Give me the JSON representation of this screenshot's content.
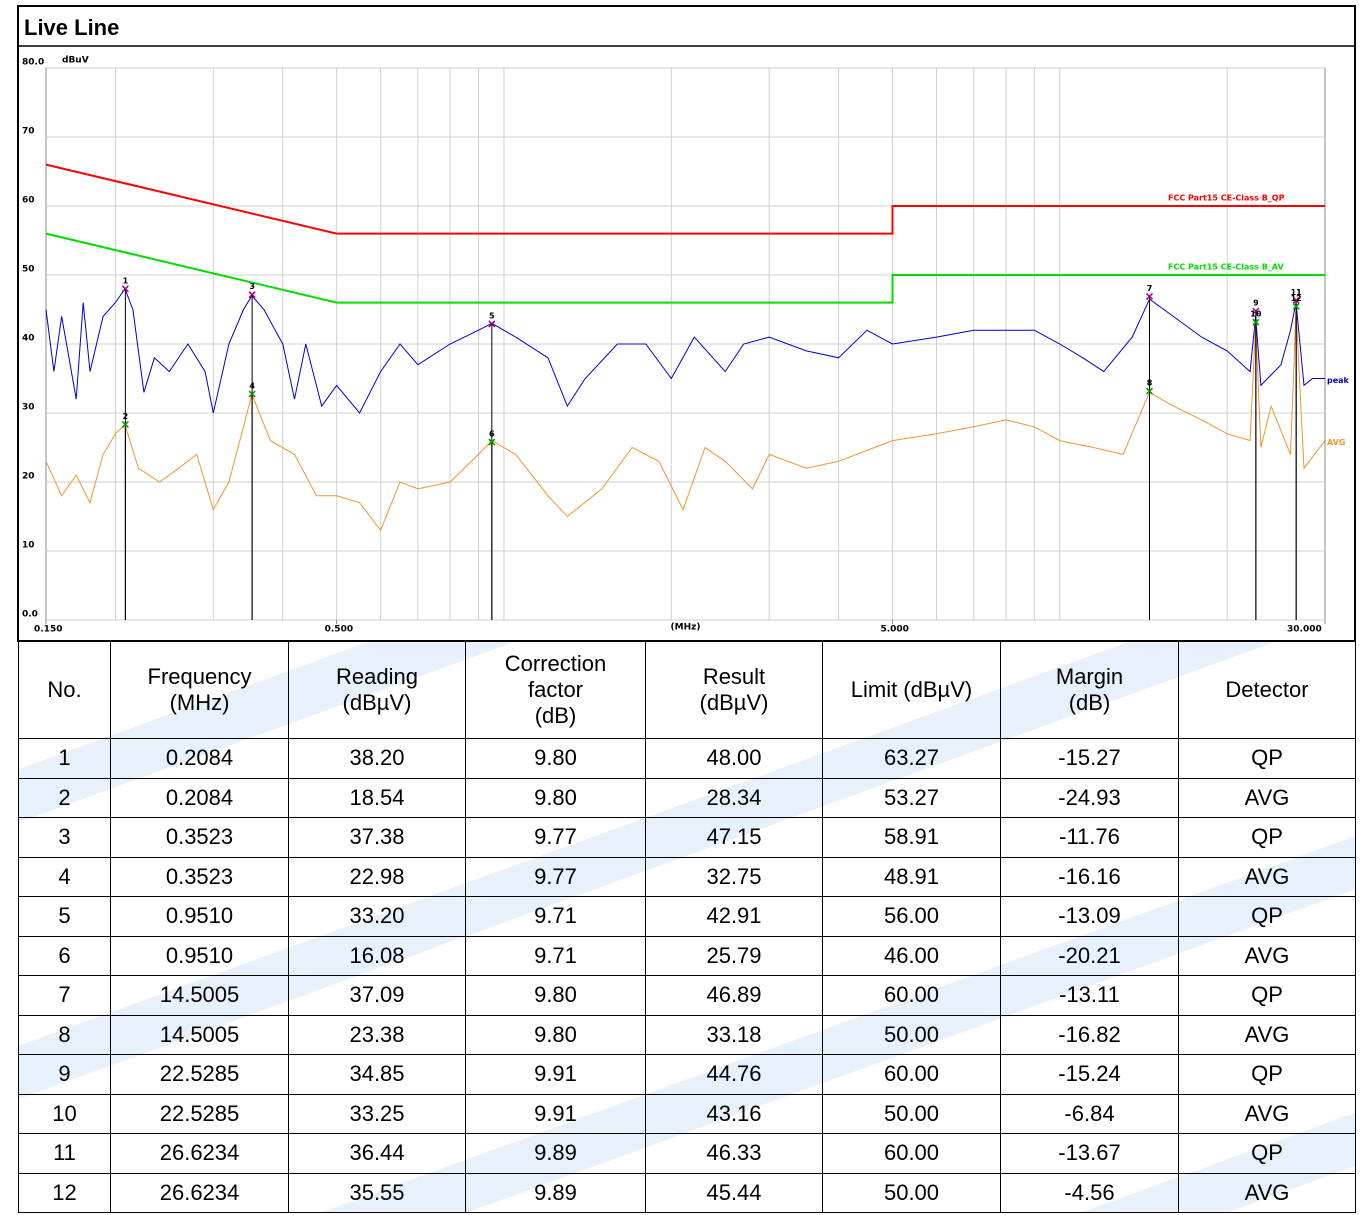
{
  "header": {
    "title": "Live Line"
  },
  "chart_data": {
    "type": "line",
    "y_unit": "dBuV",
    "x_unit": "(MHz)",
    "log_x": true,
    "log_minor_grid": true,
    "grid": true,
    "xlim": [
      0.15,
      30
    ],
    "ylim": [
      0,
      80
    ],
    "xticks": [
      {
        "value": 0.15,
        "label": "0.150"
      },
      {
        "value": 0.5,
        "label": "0.500"
      },
      {
        "value": 5,
        "label": "5.000"
      },
      {
        "value": 30,
        "label": "30.000"
      }
    ],
    "yticks": [
      {
        "value": 80,
        "label": "80.0"
      },
      70,
      60,
      50,
      40,
      30,
      20,
      10,
      {
        "value": 0,
        "label": "0.0"
      }
    ],
    "limits": [
      {
        "name": "FCC Part15 CE-Class B_QP",
        "color": "#ff0000",
        "x": [
          0.15,
          0.5,
          5,
          5,
          30
        ],
        "values": [
          66,
          56,
          56,
          60,
          60
        ]
      },
      {
        "name": "FCC Part15 CE-Class B_AV",
        "color": "#00dd00",
        "x": [
          0.15,
          0.5,
          5,
          5,
          30
        ],
        "values": [
          56,
          46,
          46,
          50,
          50
        ]
      }
    ],
    "series": [
      {
        "name": "peak",
        "color": "#0000cc",
        "x": [
          0.15,
          0.155,
          0.16,
          0.165,
          0.17,
          0.175,
          0.18,
          0.19,
          0.2,
          0.208,
          0.215,
          0.225,
          0.235,
          0.25,
          0.27,
          0.29,
          0.3,
          0.32,
          0.34,
          0.352,
          0.37,
          0.4,
          0.42,
          0.44,
          0.47,
          0.5,
          0.55,
          0.6,
          0.65,
          0.7,
          0.8,
          0.9,
          0.951,
          1.05,
          1.2,
          1.3,
          1.4,
          1.6,
          1.8,
          2.0,
          2.2,
          2.5,
          2.7,
          3.0,
          3.5,
          4.0,
          4.5,
          5.0,
          6.0,
          7.0,
          8.0,
          9.0,
          10.0,
          11.0,
          12.0,
          13.5,
          14.5,
          16.0,
          18.0,
          20.0,
          22.0,
          22.5,
          23.0,
          25.0,
          26.0,
          26.6,
          27.5,
          28.5,
          30.0
        ],
        "values": [
          45,
          36,
          44,
          38,
          32,
          46,
          36,
          44,
          46,
          48,
          45,
          33,
          38,
          36,
          40,
          36,
          30,
          40,
          45,
          47,
          45,
          40,
          32,
          40,
          31,
          34,
          30,
          36,
          40,
          37,
          40,
          42,
          43,
          41,
          38,
          31,
          35,
          40,
          40,
          35,
          41,
          36,
          40,
          41,
          39,
          38,
          42,
          40,
          41,
          42,
          42,
          42,
          40,
          38,
          36,
          41,
          46.5,
          44,
          41,
          39,
          36,
          44,
          34,
          37,
          42,
          46,
          34,
          35,
          35
        ]
      },
      {
        "name": "AVG",
        "color": "#f39530",
        "x": [
          0.15,
          0.16,
          0.17,
          0.18,
          0.19,
          0.2,
          0.208,
          0.22,
          0.24,
          0.26,
          0.28,
          0.3,
          0.32,
          0.34,
          0.352,
          0.38,
          0.42,
          0.46,
          0.5,
          0.55,
          0.6,
          0.65,
          0.7,
          0.8,
          0.9,
          0.951,
          1.05,
          1.2,
          1.3,
          1.5,
          1.7,
          1.9,
          2.1,
          2.3,
          2.5,
          2.8,
          3.0,
          3.5,
          4.0,
          5.0,
          6.0,
          7.0,
          8.0,
          9.0,
          10.0,
          11.5,
          13.0,
          14.5,
          16.0,
          18.0,
          20.0,
          22.0,
          22.5,
          23.0,
          24.0,
          26.0,
          26.6,
          27.5,
          30.0
        ],
        "values": [
          23,
          18,
          21,
          17,
          24,
          27,
          28.3,
          22,
          20,
          22,
          24,
          16,
          20,
          28,
          32.7,
          26,
          24,
          18,
          18,
          17,
          13,
          20,
          19,
          20,
          24,
          26,
          24,
          18,
          15,
          19,
          25,
          23,
          16,
          25,
          23,
          19,
          24,
          22,
          23,
          26,
          27,
          28,
          29,
          28,
          26,
          25,
          24,
          33,
          31,
          29,
          27,
          26,
          43,
          25,
          31,
          24,
          45,
          22,
          26
        ]
      }
    ]
  },
  "table": {
    "header": [
      "No.",
      "Frequency\n(MHz)",
      "Reading\n(dBµV)",
      "Correction\nfactor\n(dB)",
      "Result\n(dBµV)",
      "Limit (dBµV)",
      "Margin\n(dB)",
      "Detector"
    ],
    "rows": [
      [
        "1",
        "0.2084",
        "38.20",
        "9.80",
        "48.00",
        "63.27",
        "-15.27",
        "QP"
      ],
      [
        "2",
        "0.2084",
        "18.54",
        "9.80",
        "28.34",
        "53.27",
        "-24.93",
        "AVG"
      ],
      [
        "3",
        "0.3523",
        "37.38",
        "9.77",
        "47.15",
        "58.91",
        "-11.76",
        "QP"
      ],
      [
        "4",
        "0.3523",
        "22.98",
        "9.77",
        "32.75",
        "48.91",
        "-16.16",
        "AVG"
      ],
      [
        "5",
        "0.9510",
        "33.20",
        "9.71",
        "42.91",
        "56.00",
        "-13.09",
        "QP"
      ],
      [
        "6",
        "0.9510",
        "16.08",
        "9.71",
        "25.79",
        "46.00",
        "-20.21",
        "AVG"
      ],
      [
        "7",
        "14.5005",
        "37.09",
        "9.80",
        "46.89",
        "60.00",
        "-13.11",
        "QP"
      ],
      [
        "8",
        "14.5005",
        "23.38",
        "9.80",
        "33.18",
        "50.00",
        "-16.82",
        "AVG"
      ],
      [
        "9",
        "22.5285",
        "34.85",
        "9.91",
        "44.76",
        "60.00",
        "-15.24",
        "QP"
      ],
      [
        "10",
        "22.5285",
        "33.25",
        "9.91",
        "43.16",
        "50.00",
        "-6.84",
        "AVG"
      ],
      [
        "11",
        "26.6234",
        "36.44",
        "9.89",
        "46.33",
        "60.00",
        "-13.67",
        "QP"
      ],
      [
        "12",
        "26.6234",
        "35.55",
        "9.89",
        "45.44",
        "50.00",
        "-4.56",
        "AVG"
      ]
    ]
  }
}
